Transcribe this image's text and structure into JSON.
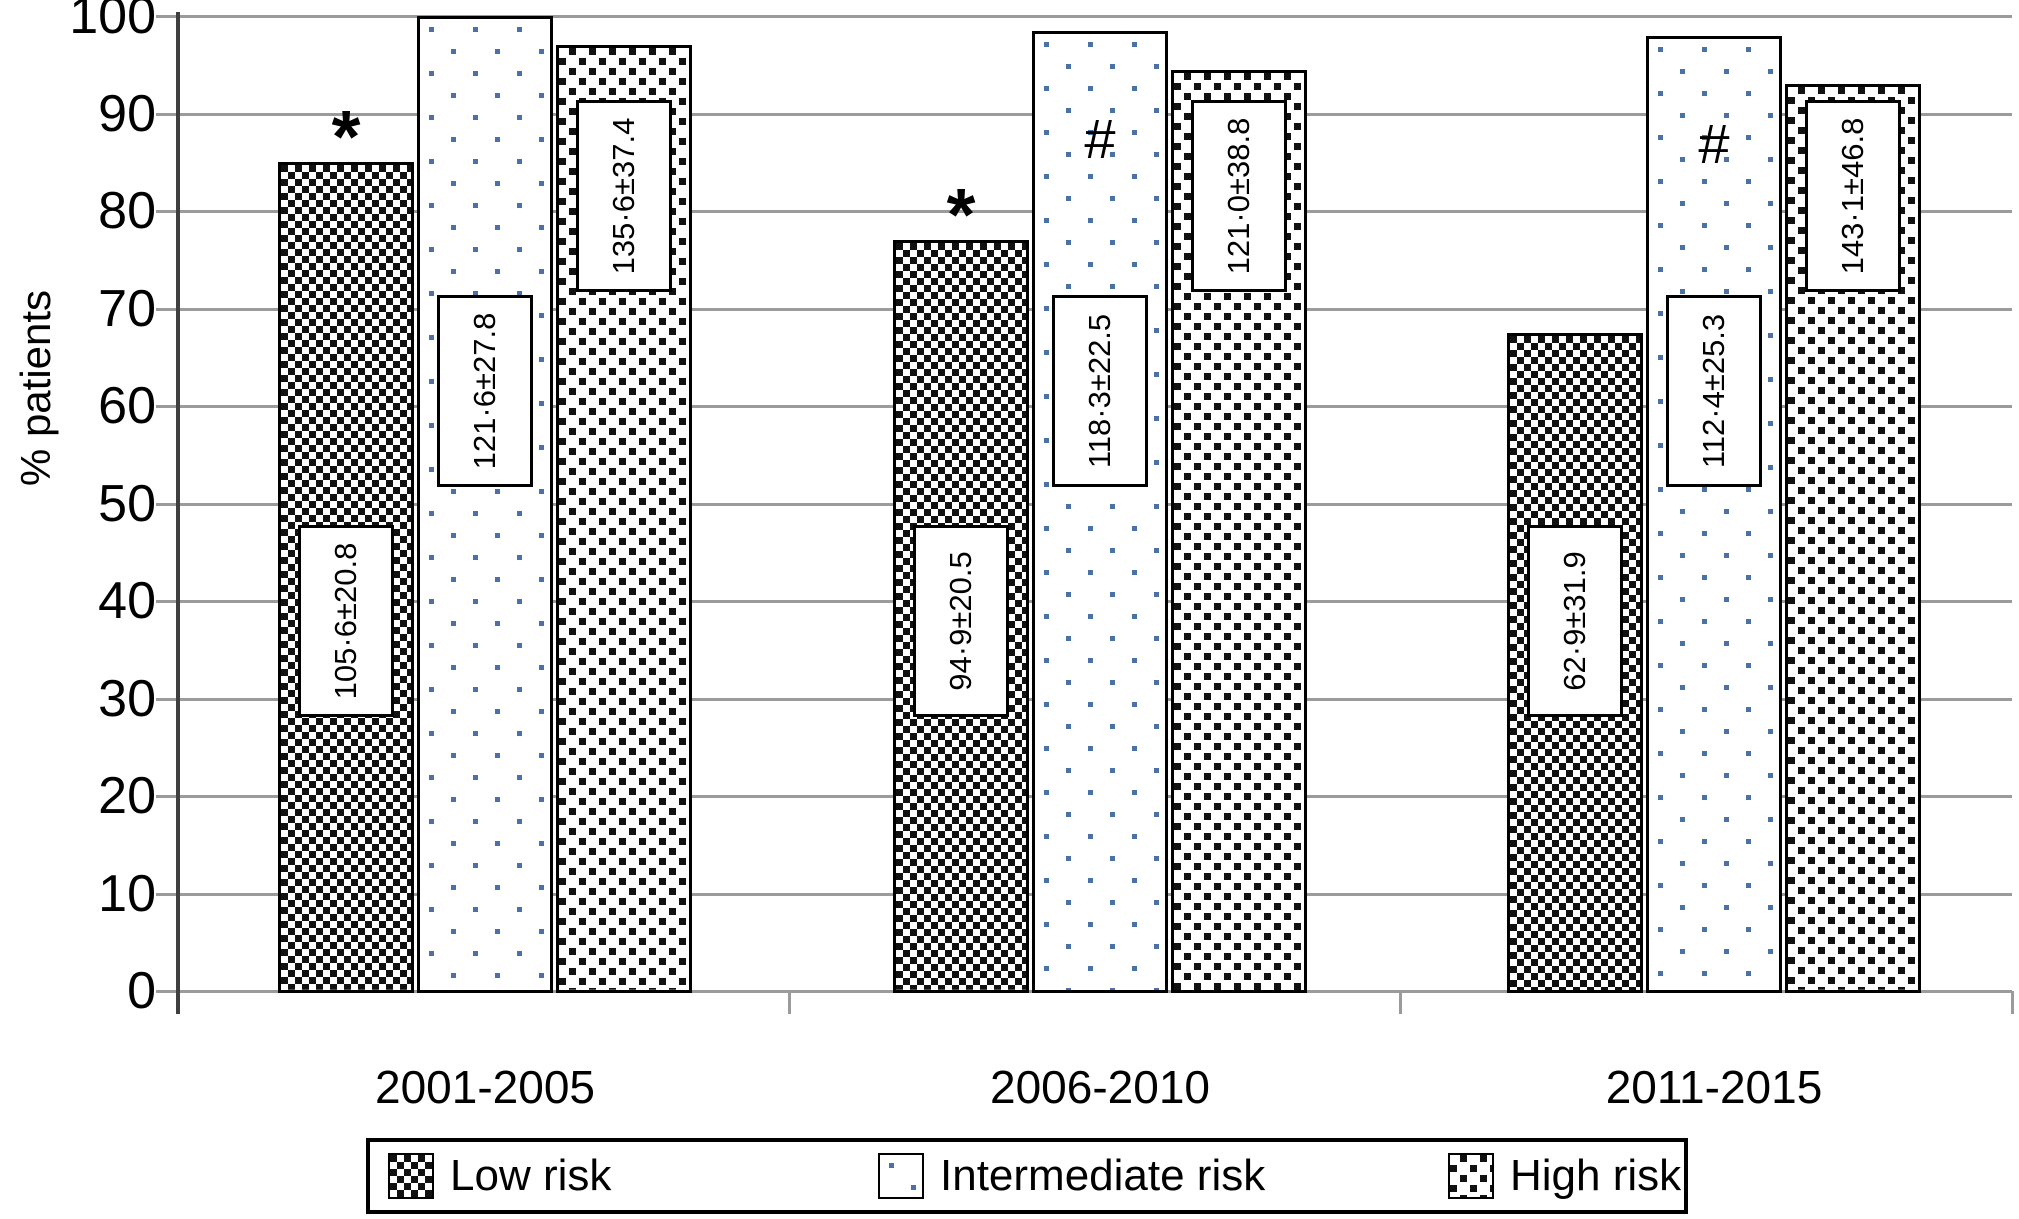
{
  "y_axis": {
    "title": "% patients",
    "ticks": [
      100,
      90,
      80,
      70,
      60,
      50,
      40,
      30,
      20,
      10,
      0
    ],
    "min": 0,
    "max": 100
  },
  "x_axis": {
    "categories": [
      "2001-2005",
      "2006-2010",
      "2011-2015"
    ]
  },
  "legend": {
    "items": [
      {
        "label": "Low risk",
        "pattern": "checker"
      },
      {
        "label": "Intermediate risk",
        "pattern": "dots"
      },
      {
        "label": "High risk",
        "pattern": "diag"
      }
    ]
  },
  "colors": {
    "dot_blue": "#4a72a8",
    "pattern_black": "#111111",
    "gridline_gray": "#9b9b9b",
    "axis_dark": "#3f3f3f"
  },
  "chart_data": {
    "type": "bar",
    "title": "",
    "categories": [
      "2001-2005",
      "2006-2010",
      "2011-2015"
    ],
    "series": [
      {
        "name": "Low risk",
        "pattern": "checker",
        "values": [
          85,
          77,
          67.5
        ],
        "bar_labels": [
          "105·6±20.8",
          "94·9±20.5",
          "62·9±31.9"
        ],
        "markers": [
          "*",
          "*",
          null
        ]
      },
      {
        "name": "Intermediate risk",
        "pattern": "dots",
        "values": [
          100,
          98.5,
          98
        ],
        "bar_labels": [
          "121·6±27.8",
          "118·3±22.5",
          "112·4±25.3"
        ],
        "markers": [
          null,
          "#",
          "#"
        ]
      },
      {
        "name": "High risk",
        "pattern": "diag",
        "values": [
          97,
          94.5,
          93
        ],
        "bar_labels": [
          "135·6±37.4",
          "121·0±38.8",
          "143·1±46.8"
        ],
        "markers": [
          null,
          null,
          null
        ]
      }
    ],
    "ylabel": "% patients",
    "xlabel": "",
    "ylim": [
      0,
      100
    ],
    "grid": true,
    "legend_position": "bottom"
  }
}
